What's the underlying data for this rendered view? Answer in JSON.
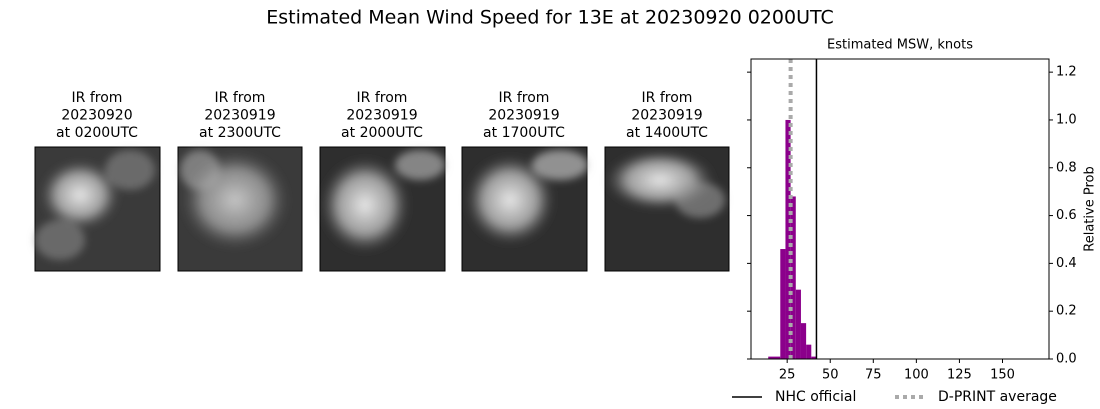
{
  "title": "Estimated Mean Wind Speed for 13E at 20230920 0200UTC",
  "images": [
    {
      "label": [
        "IR from",
        "20230920",
        "at 0200UTC"
      ]
    },
    {
      "label": [
        "IR from",
        "20230919",
        "at 2300UTC"
      ]
    },
    {
      "label": [
        "IR from",
        "20230919",
        "at 2000UTC"
      ]
    },
    {
      "label": [
        "IR from",
        "20230919",
        "at 1700UTC"
      ]
    },
    {
      "label": [
        "IR from",
        "20230919",
        "at 1400UTC"
      ]
    }
  ],
  "chart_data": {
    "type": "histogram",
    "title": "Estimated MSW, knots",
    "y_label": "Relative Prob",
    "bins": [
      14,
      21,
      24,
      27,
      30,
      33,
      36,
      39,
      42
    ],
    "values": [
      0.01,
      0.46,
      1.0,
      0.68,
      0.29,
      0.15,
      0.06,
      0.01
    ],
    "color": "#8b008b",
    "xlim": [
      4,
      177
    ],
    "xticks": [
      25,
      50,
      75,
      100,
      125,
      150
    ],
    "ylim": [
      0,
      1.255
    ],
    "yticks": [
      {
        "value": 0,
        "label": "0.0"
      },
      0.2,
      0.4,
      0.6,
      0.8,
      {
        "value": 1,
        "label": "1.0"
      },
      1.2
    ],
    "lines": [
      {
        "name": "NHC official",
        "value": 42,
        "color": "#000000",
        "style": "solid"
      },
      {
        "name": "D-PRINT average",
        "value": 27,
        "color": "#aaaaaa",
        "style": "dotted"
      }
    ],
    "legend": "bottom"
  }
}
